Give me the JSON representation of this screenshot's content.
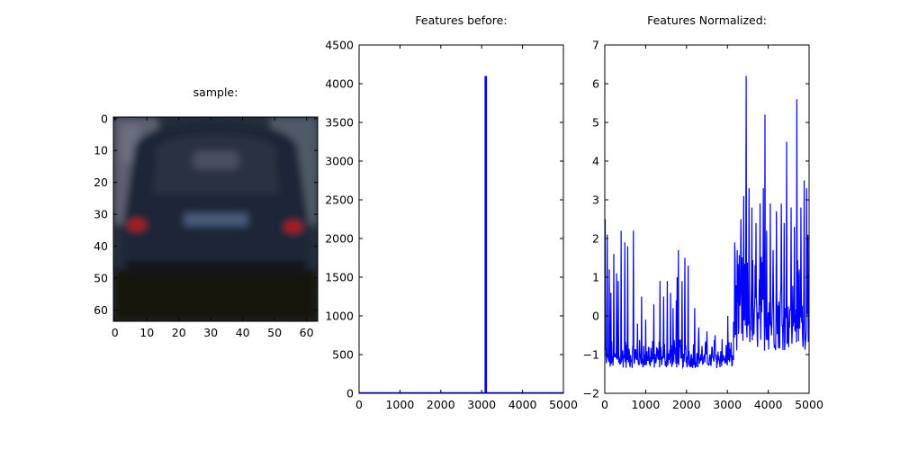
{
  "figure": {
    "background": "#ffffff"
  },
  "chart_data": [
    {
      "type": "image",
      "title": "sample:",
      "xticks": [
        "0",
        "10",
        "20",
        "30",
        "40",
        "50",
        "60"
      ],
      "yticks": [
        "0",
        "10",
        "20",
        "30",
        "40",
        "50",
        "60"
      ],
      "xlim": [
        -0.5,
        63.5
      ],
      "ylim": [
        63.5,
        -0.5
      ],
      "image": {
        "description_colors": {
          "sky": "#2a3444",
          "car_body": "#1d2638",
          "window": "#2c3444",
          "ground": "#1a1610",
          "tail_light": "#b21e1e",
          "plate": "#465a7a"
        }
      }
    },
    {
      "type": "bar",
      "title": "Features before:",
      "color": "#0000ff",
      "xlim": [
        0,
        5000
      ],
      "ylim": [
        0,
        4500
      ],
      "xticks": [
        "0",
        "1000",
        "2000",
        "3000",
        "4000",
        "5000"
      ],
      "yticks": [
        "0",
        "500",
        "1000",
        "1500",
        "2000",
        "2500",
        "3000",
        "3500",
        "4000",
        "4500"
      ],
      "baseline_value": 3,
      "peak": {
        "x_start": 3070,
        "x_end": 3130,
        "value": 4100
      }
    },
    {
      "type": "line",
      "title": "Features Normalized:",
      "color": "#0000ff",
      "xlim": [
        0,
        5000
      ],
      "ylim": [
        -2,
        7
      ],
      "xticks": [
        "0",
        "1000",
        "2000",
        "3000",
        "4000",
        "5000"
      ],
      "yticks": [
        "−2",
        "−1",
        "0",
        "1",
        "2",
        "3",
        "4",
        "5",
        "6",
        "7"
      ],
      "segments": [
        {
          "x_start": 0,
          "x_end": 3150,
          "low": -1.35,
          "high": -0.6,
          "spikes": [
            [
              10,
              2.5
            ],
            [
              60,
              2.1
            ],
            [
              110,
              1.2
            ],
            [
              150,
              0.6
            ],
            [
              220,
              1.6
            ],
            [
              290,
              1.1
            ],
            [
              330,
              0.9
            ],
            [
              400,
              2.2
            ],
            [
              490,
              1.9
            ],
            [
              560,
              1.8
            ],
            [
              700,
              2.2
            ],
            [
              800,
              -0.2
            ],
            [
              900,
              0.5
            ],
            [
              1000,
              -0.1
            ],
            [
              1200,
              0.3
            ],
            [
              1350,
              0.9
            ],
            [
              1440,
              0.5
            ],
            [
              1530,
              0.9
            ],
            [
              1610,
              0.6
            ],
            [
              1670,
              0.2
            ],
            [
              1750,
              0.4
            ],
            [
              1770,
              1.0
            ],
            [
              1800,
              1.7
            ],
            [
              1890,
              0.9
            ],
            [
              1960,
              1.5
            ],
            [
              2040,
              1.3
            ],
            [
              2200,
              0.2
            ],
            [
              2300,
              -0.3
            ],
            [
              2500,
              -0.4
            ],
            [
              2700,
              -0.5
            ],
            [
              2870,
              -0.6
            ],
            [
              3010,
              0.0
            ]
          ]
        },
        {
          "x_start": 3150,
          "x_end": 4990,
          "low": -0.9,
          "high": 1.6,
          "spikes": [
            [
              3180,
              1.9
            ],
            [
              3240,
              1.7
            ],
            [
              3330,
              2.5
            ],
            [
              3400,
              3.1
            ],
            [
              3460,
              6.2
            ],
            [
              3530,
              3.3
            ],
            [
              3600,
              2.8
            ],
            [
              3700,
              2.4
            ],
            [
              3800,
              2.9
            ],
            [
              3880,
              3.3
            ],
            [
              3920,
              5.2
            ],
            [
              3960,
              2.2
            ],
            [
              4050,
              2.9
            ],
            [
              4120,
              1.7
            ],
            [
              4200,
              2.7
            ],
            [
              4320,
              2.9
            ],
            [
              4390,
              2.4
            ],
            [
              4450,
              4.5
            ],
            [
              4560,
              2.8
            ],
            [
              4640,
              2.3
            ],
            [
              4700,
              5.6
            ],
            [
              4800,
              2.8
            ],
            [
              4880,
              3.5
            ],
            [
              4940,
              3.3
            ],
            [
              4970,
              2.1
            ]
          ]
        }
      ]
    }
  ]
}
